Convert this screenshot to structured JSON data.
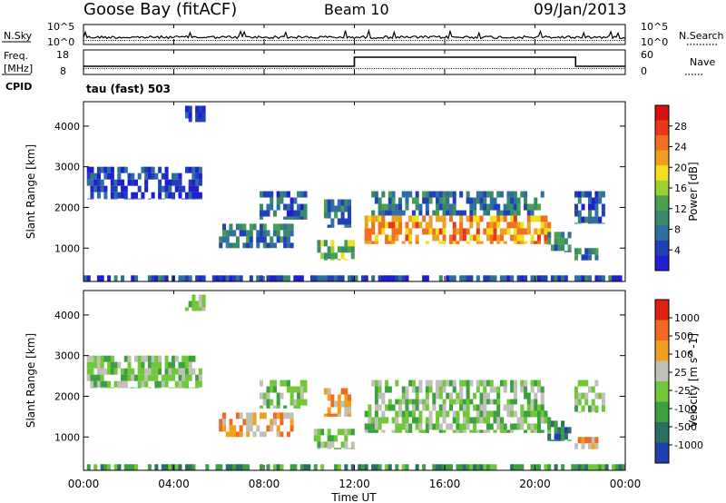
{
  "header": {
    "radar": "Goose Bay (fitACF)",
    "beam": "Beam 10",
    "date": "09/Jan/2013"
  },
  "noise_panel": {
    "left_label": "N.Sky",
    "right_label": "N.Search",
    "left_ticks": [
      "10^5",
      "10^0"
    ],
    "right_ticks": [
      "10^5",
      "10^0"
    ]
  },
  "freq_panel": {
    "left_label_line1": "Freq.",
    "left_label_line2": "[MHz]",
    "right_label": "Nave",
    "left_ticks": [
      "18",
      "8"
    ],
    "right_ticks": [
      "60",
      "0"
    ],
    "cpid_label": "CPID",
    "cpid_value": "tau (fast) 503"
  },
  "x_axis": {
    "label": "Time UT",
    "ticks": [
      "00:00",
      "04:00",
      "08:00",
      "12:00",
      "16:00",
      "20:00",
      "00:00"
    ]
  },
  "chart_data": [
    {
      "type": "heatmap",
      "title": "Power",
      "ylabel": "Slant Range [km]",
      "colorbar_label": "Power [dB]",
      "yticks": [
        "4000",
        "3000",
        "2000",
        "1000"
      ],
      "ylim": [
        180,
        4600
      ],
      "xlim_hours": [
        0,
        24
      ],
      "colorbar_ticks": [
        "28",
        "24",
        "20",
        "16",
        "12",
        "8",
        "4"
      ],
      "colorscale": [
        "#1f1fd0",
        "#2040b8",
        "#2e6fa0",
        "#3a8a6a",
        "#4aa050",
        "#9ad030",
        "#f0e020",
        "#f0a020",
        "#f07020",
        "#e83818",
        "#d81010"
      ],
      "regions": [
        {
          "t0": 0.3,
          "t1": 5.2,
          "r0": 2200,
          "r1": 3000,
          "level": 0.12
        },
        {
          "t0": 4.6,
          "t1": 5.3,
          "r0": 4100,
          "r1": 4500,
          "level": 0.1
        },
        {
          "t0": 6.0,
          "t1": 9.3,
          "r0": 1000,
          "r1": 1600,
          "level": 0.25
        },
        {
          "t0": 7.8,
          "t1": 9.8,
          "r0": 1700,
          "r1": 2400,
          "level": 0.2
        },
        {
          "t0": 10.3,
          "t1": 12.0,
          "r0": 700,
          "r1": 1200,
          "level": 0.45
        },
        {
          "t0": 10.7,
          "t1": 11.8,
          "r0": 1500,
          "r1": 2200,
          "level": 0.25
        },
        {
          "t0": 12.5,
          "t1": 20.6,
          "r0": 1100,
          "r1": 1800,
          "level": 0.7
        },
        {
          "t0": 12.8,
          "t1": 20.4,
          "r0": 1800,
          "r1": 2400,
          "level": 0.25
        },
        {
          "t0": 20.6,
          "t1": 21.6,
          "r0": 900,
          "r1": 1400,
          "level": 0.3
        },
        {
          "t0": 21.8,
          "t1": 22.8,
          "r0": 700,
          "r1": 1000,
          "level": 0.25
        },
        {
          "t0": 21.8,
          "t1": 23.1,
          "r0": 1600,
          "r1": 2400,
          "level": 0.2
        },
        {
          "t0": 0.0,
          "t1": 24.0,
          "r0": 190,
          "r1": 330,
          "level": 0.15
        }
      ]
    },
    {
      "type": "heatmap",
      "title": "Velocity",
      "ylabel": "Slant Range [km]",
      "colorbar_label": "Velocity [m s^-1]",
      "yticks": [
        "4000",
        "3000",
        "2000",
        "1000"
      ],
      "ylim": [
        180,
        4600
      ],
      "xlim_hours": [
        0,
        24
      ],
      "colorbar_ticks": [
        "1000",
        "500",
        "100",
        "25",
        "-25",
        "-100",
        "-500",
        "-1000"
      ],
      "colorscale": [
        "#2040b0",
        "#2a7060",
        "#3aa040",
        "#70c838",
        "#c0c0b8",
        "#f0a020",
        "#f06a20",
        "#e02010"
      ],
      "regions": [
        {
          "t0": 0.3,
          "t1": 5.2,
          "r0": 2200,
          "r1": 3000,
          "level": 0.45
        },
        {
          "t0": 4.6,
          "t1": 5.3,
          "r0": 4100,
          "r1": 4500,
          "level": 0.45
        },
        {
          "t0": 6.0,
          "t1": 9.3,
          "r0": 1000,
          "r1": 1600,
          "level": 0.7
        },
        {
          "t0": 7.8,
          "t1": 9.8,
          "r0": 1700,
          "r1": 2400,
          "level": 0.45
        },
        {
          "t0": 10.3,
          "t1": 12.0,
          "r0": 700,
          "r1": 1200,
          "level": 0.45
        },
        {
          "t0": 10.7,
          "t1": 11.8,
          "r0": 1500,
          "r1": 2200,
          "level": 0.7
        },
        {
          "t0": 12.5,
          "t1": 20.6,
          "r0": 1100,
          "r1": 1800,
          "level": 0.45
        },
        {
          "t0": 12.8,
          "t1": 20.4,
          "r0": 1800,
          "r1": 2400,
          "level": 0.45
        },
        {
          "t0": 20.6,
          "t1": 21.6,
          "r0": 900,
          "r1": 1400,
          "level": 0.2
        },
        {
          "t0": 21.8,
          "t1": 22.8,
          "r0": 700,
          "r1": 1000,
          "level": 0.75
        },
        {
          "t0": 21.8,
          "t1": 23.1,
          "r0": 1600,
          "r1": 2400,
          "level": 0.45
        },
        {
          "t0": 0.0,
          "t1": 24.0,
          "r0": 190,
          "r1": 330,
          "level": 0.3
        }
      ]
    }
  ]
}
